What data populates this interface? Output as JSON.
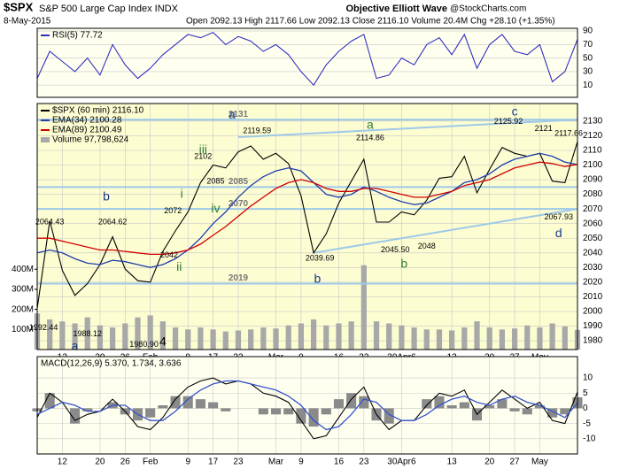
{
  "header": {
    "symbol": "$SPX",
    "name": "S&P 500 Large Cap Index INDX",
    "date": "8-May-2015",
    "quote": "Open 2092.13 High 2117.66 Low 2092.13 Close 2116.10 Volume 20.4M Chg +28.10 (+1.35%)",
    "source": "Objective Elliott Wave",
    "credit": "@StockCharts.com"
  },
  "chart_data": [
    {
      "type": "line",
      "xlim": [
        0,
        43
      ],
      "ylim": [
        -8,
        94
      ],
      "yticks": [
        10,
        30,
        50,
        70,
        90
      ],
      "grid": true,
      "x": [
        0,
        1,
        2,
        3,
        4,
        5,
        6,
        7,
        8,
        9,
        10,
        11,
        12,
        13,
        14,
        15,
        16,
        17,
        18,
        19,
        20,
        21,
        22,
        23,
        24,
        25,
        26,
        27,
        28,
        29,
        30,
        31,
        32,
        33,
        34,
        35,
        36,
        37,
        38,
        39,
        40,
        41,
        42,
        43
      ],
      "series": [
        {
          "name": "RSI(5) 77.72",
          "color": "#3030c0",
          "values": [
            20,
            60,
            45,
            30,
            50,
            25,
            70,
            40,
            20,
            35,
            55,
            70,
            85,
            80,
            88,
            70,
            82,
            75,
            60,
            70,
            55,
            30,
            10,
            40,
            60,
            75,
            85,
            20,
            25,
            50,
            40,
            70,
            80,
            55,
            85,
            35,
            70,
            85,
            60,
            55,
            70,
            15,
            30,
            77.72
          ]
        }
      ]
    },
    {
      "type": "line",
      "xlim": [
        0,
        43
      ],
      "ylim": [
        1974,
        2142
      ],
      "yticks": [
        1980,
        1990,
        2000,
        2010,
        2020,
        2030,
        2040,
        2050,
        2060,
        2070,
        2080,
        2090,
        2100,
        2110,
        2120,
        2130
      ],
      "grid": true,
      "x": [
        0,
        1,
        2,
        3,
        4,
        5,
        6,
        7,
        8,
        9,
        10,
        11,
        12,
        13,
        14,
        15,
        16,
        17,
        18,
        19,
        20,
        21,
        22,
        23,
        24,
        25,
        26,
        27,
        28,
        29,
        30,
        31,
        32,
        33,
        34,
        35,
        36,
        37,
        38,
        39,
        40,
        41,
        42,
        43
      ],
      "xticks": [
        {
          "value": 2,
          "label": "12"
        },
        {
          "value": 5,
          "label": "20"
        },
        {
          "value": 7,
          "label": "26"
        },
        {
          "value": 9,
          "label": "Feb"
        },
        {
          "value": 12,
          "label": "9"
        },
        {
          "value": 14,
          "label": "17"
        },
        {
          "value": 16,
          "label": "23"
        },
        {
          "value": 19,
          "label": "Mar"
        },
        {
          "value": 21,
          "label": "9"
        },
        {
          "value": 24,
          "label": "16"
        },
        {
          "value": 26,
          "label": "23"
        },
        {
          "value": 29,
          "label": "30Apr6"
        },
        {
          "value": 33,
          "label": "13"
        },
        {
          "value": 36,
          "label": "20"
        },
        {
          "value": 38,
          "label": "27"
        },
        {
          "value": 40,
          "label": "May"
        }
      ],
      "series": [
        {
          "name": "$SPX (60 min) 2116.10",
          "color": "#000000",
          "values": [
            2002,
            2062,
            2028,
            2011,
            2019,
            2032,
            2051,
            2029,
            2021,
            2020,
            2041,
            2055,
            2068,
            2088,
            2100,
            2098,
            2109,
            2113,
            2104,
            2108,
            2101,
            2079,
            2040,
            2053,
            2074,
            2089,
            2104,
            2061,
            2061,
            2068,
            2066,
            2076,
            2091,
            2092,
            2106,
            2081,
            2097,
            2112,
            2108,
            2106,
            2108,
            2089,
            2088,
            2116
          ]
        },
        {
          "name": "EMA(34) 2100.28",
          "color": "#1f3fae",
          "values": [
            2040,
            2042,
            2040,
            2036,
            2033,
            2032,
            2035,
            2034,
            2032,
            2030,
            2032,
            2036,
            2042,
            2050,
            2060,
            2068,
            2078,
            2086,
            2092,
            2096,
            2098,
            2096,
            2088,
            2080,
            2078,
            2080,
            2085,
            2082,
            2078,
            2075,
            2073,
            2074,
            2078,
            2082,
            2088,
            2090,
            2094,
            2100,
            2104,
            2106,
            2108,
            2106,
            2102,
            2100.28
          ]
        },
        {
          "name": "EMA(89) 2100.49",
          "color": "#d00000",
          "values": [
            2050,
            2050,
            2048,
            2046,
            2044,
            2042,
            2042,
            2041,
            2040,
            2039,
            2039,
            2040,
            2042,
            2046,
            2052,
            2058,
            2065,
            2072,
            2078,
            2084,
            2088,
            2090,
            2088,
            2084,
            2082,
            2082,
            2084,
            2084,
            2082,
            2080,
            2078,
            2078,
            2080,
            2082,
            2086,
            2088,
            2090,
            2094,
            2098,
            2100,
            2102,
            2101,
            2099,
            2100.49
          ]
        }
      ],
      "volume": {
        "name": "Volume 97,798,624",
        "color": "#a8a8a8",
        "vlim": [
          0,
          1225
        ],
        "vticks": [
          {
            "value": 100,
            "label": "100M"
          },
          {
            "value": 200,
            "label": "200M"
          },
          {
            "value": 300,
            "label": "300M"
          },
          {
            "value": 400,
            "label": "400M"
          }
        ],
        "values": [
          180,
          150,
          140,
          130,
          160,
          120,
          110,
          130,
          160,
          170,
          140,
          110,
          100,
          110,
          100,
          90,
          95,
          100,
          110,
          105,
          120,
          130,
          150,
          120,
          130,
          140,
          420,
          140,
          130,
          120,
          110,
          100,
          100,
          95,
          110,
          140,
          110,
          100,
          105,
          120,
          110,
          130,
          115,
          97.8
        ]
      },
      "levels": [
        2131,
        2085,
        2070,
        2019
      ],
      "level_color": "#9ec9e8",
      "level_label_x": 16,
      "trendlines": [
        {
          "x": [
            22,
            43
          ],
          "y": [
            2040,
            2070
          ]
        },
        {
          "x": [
            16,
            43
          ],
          "y": [
            2119,
            2131
          ]
        }
      ],
      "annotations": [
        {
          "text": "2064.43",
          "x": 1,
          "y": 2064.43,
          "color": "#000000"
        },
        {
          "text": "2064.62",
          "x": 6,
          "y": 2064.62,
          "color": "#000000"
        },
        {
          "text": "1992.44",
          "x": 0.5,
          "y": 1992.44,
          "color": "#000000"
        },
        {
          "text": "1988.12",
          "x": 4,
          "y": 1988.12,
          "color": "#000000"
        },
        {
          "text": "1980.90",
          "x": 8.5,
          "y": 1980.9,
          "color": "#000000"
        },
        {
          "text": "2042",
          "x": 10.5,
          "y": 2042,
          "color": "#000000"
        },
        {
          "text": "2072",
          "x": 10.8,
          "y": 2072,
          "color": "#000000"
        },
        {
          "text": "2085",
          "x": 14.2,
          "y": 2085,
          "color": "#000000"
        },
        {
          "text": "2102",
          "x": 13.2,
          "y": 2102,
          "color": "#000000"
        },
        {
          "text": "2119.59",
          "x": 17.5,
          "y": 2119.59,
          "color": "#000000"
        },
        {
          "text": "2039.69",
          "x": 22.5,
          "y": 2039.69,
          "color": "#000000"
        },
        {
          "text": "2114.86",
          "x": 26.5,
          "y": 2114.86,
          "color": "#000000"
        },
        {
          "text": "2045.50",
          "x": 28.5,
          "y": 2045.5,
          "color": "#000000"
        },
        {
          "text": "2048",
          "x": 31,
          "y": 2048,
          "color": "#000000"
        },
        {
          "text": "2125.92",
          "x": 37.5,
          "y": 2125.92,
          "color": "#000000"
        },
        {
          "text": "2121",
          "x": 40.3,
          "y": 2121,
          "color": "#000000"
        },
        {
          "text": "2117.66",
          "x": 42.3,
          "y": 2117.66,
          "color": "#000000"
        },
        {
          "text": "2067.93",
          "x": 41.5,
          "y": 2067.93,
          "color": "#000000"
        },
        {
          "text": "a",
          "x": 3,
          "y": 1976,
          "color": "#1a3a8a"
        },
        {
          "text": "a",
          "x": 15.5,
          "y": 2134,
          "color": "#1a3a8a"
        },
        {
          "text": "b",
          "x": 5.5,
          "y": 2078,
          "color": "#1a3a8a"
        },
        {
          "text": "i",
          "x": 11.5,
          "y": 2080,
          "color": "#2e7d32"
        },
        {
          "text": "ii",
          "x": 11.3,
          "y": 2030,
          "color": "#2e7d32"
        },
        {
          "text": "iii",
          "x": 13.2,
          "y": 2110,
          "color": "#2e7d32"
        },
        {
          "text": "iv",
          "x": 14.2,
          "y": 2070,
          "color": "#2e7d32"
        },
        {
          "text": "b",
          "x": 22.3,
          "y": 2022,
          "color": "#1a3a8a"
        },
        {
          "text": "a",
          "x": 26.5,
          "y": 2127,
          "color": "#2e7d32"
        },
        {
          "text": "b",
          "x": 29.2,
          "y": 2032,
          "color": "#2e7d32"
        },
        {
          "text": "c",
          "x": 38,
          "y": 2136,
          "color": "#1a3a8a"
        },
        {
          "text": "d",
          "x": 41.5,
          "y": 2053,
          "color": "#1a3a8a"
        },
        {
          "text": "4",
          "x": 10,
          "y": 1979,
          "color": "#000000"
        }
      ]
    },
    {
      "type": "line",
      "xlim": [
        0,
        43
      ],
      "ylim": [
        -15,
        17
      ],
      "yticks": [
        -10,
        -5,
        0,
        5,
        10
      ],
      "grid": true,
      "title": "MACD(12,26,9) 5.370, 1.734, 3.636",
      "x": [
        0,
        1,
        2,
        3,
        4,
        5,
        6,
        7,
        8,
        9,
        10,
        11,
        12,
        13,
        14,
        15,
        16,
        17,
        18,
        19,
        20,
        21,
        22,
        23,
        24,
        25,
        26,
        27,
        28,
        29,
        30,
        31,
        32,
        33,
        34,
        35,
        36,
        37,
        38,
        39,
        40,
        41,
        42,
        43
      ],
      "xticks": [
        {
          "value": 2,
          "label": "12"
        },
        {
          "value": 5,
          "label": "20"
        },
        {
          "value": 7,
          "label": "26"
        },
        {
          "value": 9,
          "label": "Feb"
        },
        {
          "value": 12,
          "label": "9"
        },
        {
          "value": 14,
          "label": "17"
        },
        {
          "value": 16,
          "label": "23"
        },
        {
          "value": 19,
          "label": "Mar"
        },
        {
          "value": 21,
          "label": "9"
        },
        {
          "value": 24,
          "label": "16"
        },
        {
          "value": 26,
          "label": "23"
        },
        {
          "value": 29,
          "label": "30Apr6"
        },
        {
          "value": 33,
          "label": "13"
        },
        {
          "value": 36,
          "label": "20"
        },
        {
          "value": 38,
          "label": "27"
        },
        {
          "value": 40,
          "label": "May"
        }
      ],
      "histogram": {
        "color": "#8a8a8a",
        "values": [
          -1,
          5,
          0,
          -5,
          -1,
          0,
          2,
          -2,
          -4,
          -3,
          1,
          4,
          4,
          3,
          2,
          -1,
          0,
          0,
          -2,
          -2,
          -2,
          -5,
          -6,
          -2,
          3,
          5,
          4,
          -4,
          -5,
          0,
          0,
          3,
          4,
          1,
          2,
          -4,
          1,
          3,
          -1,
          -2,
          1,
          -3,
          -2,
          3.636
        ]
      },
      "series": [
        {
          "color": "#000000",
          "values": [
            -3,
            5,
            2,
            -4,
            -2,
            -1,
            3,
            -1,
            -6,
            -7,
            -3,
            3,
            7,
            9,
            10,
            8,
            9,
            8,
            5,
            4,
            2,
            -4,
            -10,
            -9,
            -3,
            3,
            7,
            -2,
            -7,
            -4,
            -4,
            1,
            5,
            4,
            6,
            -2,
            2,
            6,
            3,
            0,
            2,
            -4,
            -5,
            5.37
          ]
        },
        {
          "color": "#3355cc",
          "values": [
            -2,
            0,
            2,
            1,
            -1,
            -1,
            1,
            1,
            -2,
            -4,
            -4,
            -1,
            3,
            6,
            8,
            9,
            9,
            8,
            7,
            6,
            4,
            1,
            -4,
            -7,
            -6,
            -2,
            3,
            2,
            -2,
            -4,
            -4,
            -2,
            1,
            3,
            4,
            2,
            1,
            3,
            4,
            2,
            1,
            -1,
            -3,
            1.734
          ]
        }
      ]
    }
  ]
}
